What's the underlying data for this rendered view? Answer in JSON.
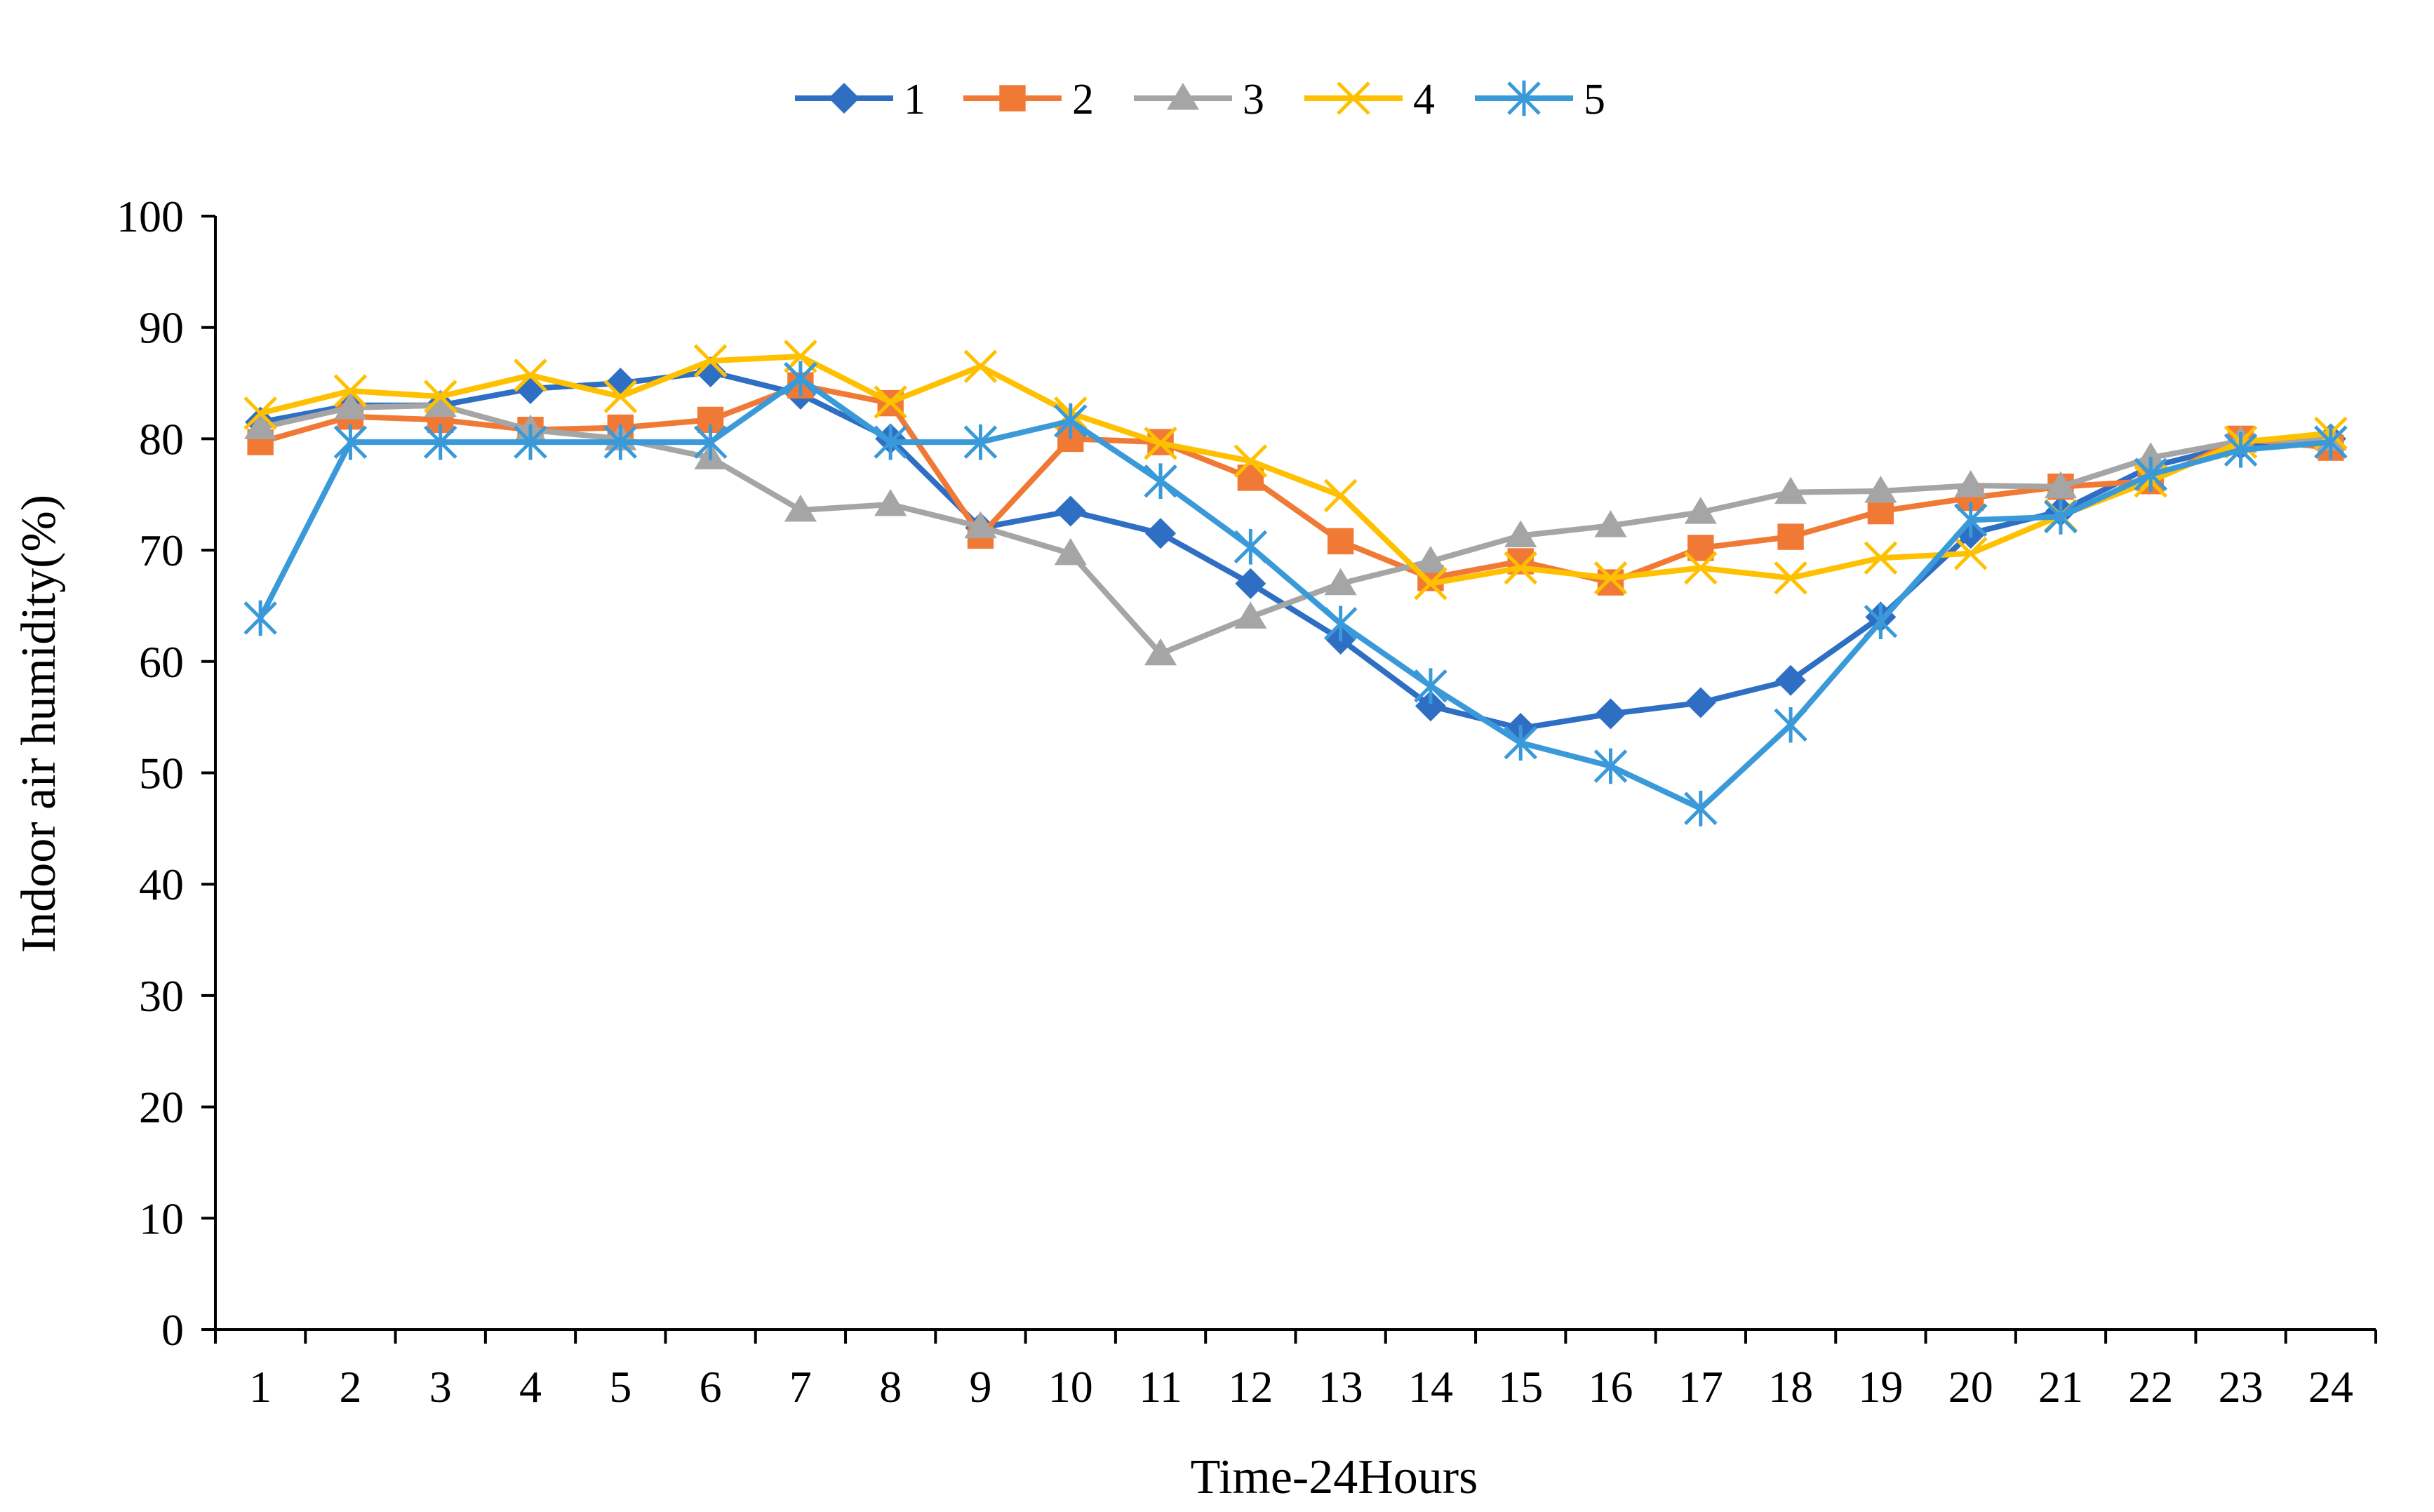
{
  "chart_data": {
    "type": "line",
    "title": "",
    "xlabel": "Time-24Hours",
    "ylabel": "Indoor air humidity(%)",
    "ylim": [
      0,
      100
    ],
    "y_ticks": [
      0,
      10,
      20,
      30,
      40,
      50,
      60,
      70,
      80,
      90,
      100
    ],
    "grid": false,
    "legend_position": "top-center",
    "categories": [
      "1",
      "2",
      "3",
      "4",
      "5",
      "6",
      "7",
      "8",
      "9",
      "10",
      "11",
      "12",
      "13",
      "14",
      "15",
      "16",
      "17",
      "18",
      "19",
      "20",
      "21",
      "22",
      "23",
      "24"
    ],
    "series": [
      {
        "name": "1",
        "color": "#2E6FC4",
        "marker": "diamond",
        "values": [
          81.5,
          83,
          83,
          84.5,
          85,
          86,
          84,
          80,
          72,
          73.5,
          71.5,
          67,
          62,
          56,
          54,
          55.3,
          56.3,
          58.3,
          64,
          71.5,
          73.5,
          77.5,
          79.5,
          80
        ]
      },
      {
        "name": "2",
        "color": "#F07A35",
        "marker": "square",
        "values": [
          79.7,
          82,
          81.7,
          80.8,
          81,
          81.7,
          84.8,
          83.2,
          71.3,
          80,
          79.7,
          76.5,
          70.8,
          67.5,
          69,
          67.1,
          70.2,
          71.2,
          73.5,
          74.7,
          75.7,
          76.2,
          80,
          79.2
        ]
      },
      {
        "name": "3",
        "color": "#A5A5A5",
        "marker": "triangle",
        "values": [
          81,
          82.8,
          83,
          80.8,
          80,
          78.3,
          73.6,
          74.1,
          72.1,
          69.7,
          60.7,
          64,
          67,
          69,
          71.3,
          72.2,
          73.4,
          75.2,
          75.3,
          75.8,
          75.7,
          78.3,
          79.8,
          80
        ]
      },
      {
        "name": "4",
        "color": "#FFC000",
        "marker": "x",
        "values": [
          82.3,
          84.3,
          83.8,
          85.7,
          83.8,
          87,
          87.4,
          83.3,
          86.5,
          82.3,
          79.6,
          78,
          74.9,
          67,
          68.4,
          67.5,
          68.4,
          67.5,
          69.3,
          69.7,
          73.1,
          76.2,
          79.7,
          80.5
        ]
      },
      {
        "name": "5",
        "color": "#3A9AD9",
        "marker": "asterisk",
        "values": [
          63.9,
          79.7,
          79.7,
          79.7,
          79.7,
          79.7,
          85.4,
          79.7,
          79.7,
          81.6,
          76.2,
          70.3,
          63.4,
          57.8,
          52.7,
          50.6,
          46.8,
          54.3,
          63.6,
          72.7,
          73,
          76.8,
          79,
          79.7
        ]
      }
    ]
  }
}
